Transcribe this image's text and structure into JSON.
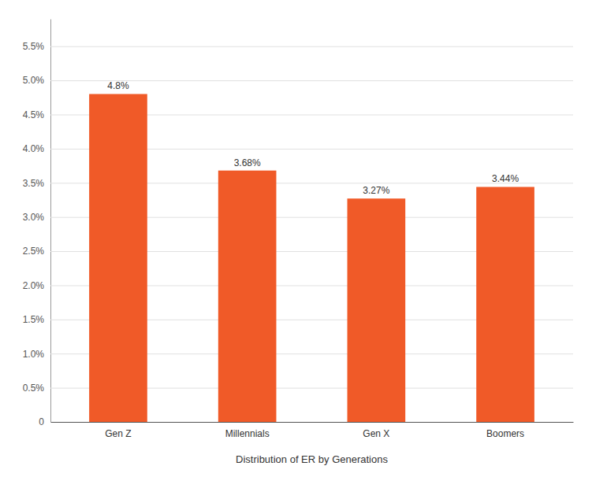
{
  "chart_data": {
    "type": "bar",
    "xlabel": "Distribution of ER by Generations",
    "categories": [
      "Gen Z",
      "Millennials",
      "Gen X",
      "Boomers"
    ],
    "values": [
      4.8,
      3.68,
      3.27,
      3.44
    ],
    "value_labels": [
      "4.8%",
      "3.68%",
      "3.27%",
      "3.44%"
    ],
    "color": "#F05A28",
    "ylim": [
      0,
      5.9
    ],
    "yticks": [
      0,
      {
        "value": 0.5,
        "label": "0.5%"
      },
      {
        "value": 1.0,
        "label": "1.0%"
      },
      {
        "value": 1.5,
        "label": "1.5%"
      },
      {
        "value": 2.0,
        "label": "2.0%"
      },
      {
        "value": 2.5,
        "label": "2.5%"
      },
      {
        "value": 3.0,
        "label": "3.0%"
      },
      {
        "value": 3.5,
        "label": "3.5%"
      },
      {
        "value": 4.0,
        "label": "4.0%"
      },
      {
        "value": 4.5,
        "label": "4.5%"
      },
      {
        "value": 5.0,
        "label": "5.0%"
      },
      {
        "value": 5.5,
        "label": "5.5%"
      }
    ],
    "grid": true,
    "data_labels": true
  }
}
